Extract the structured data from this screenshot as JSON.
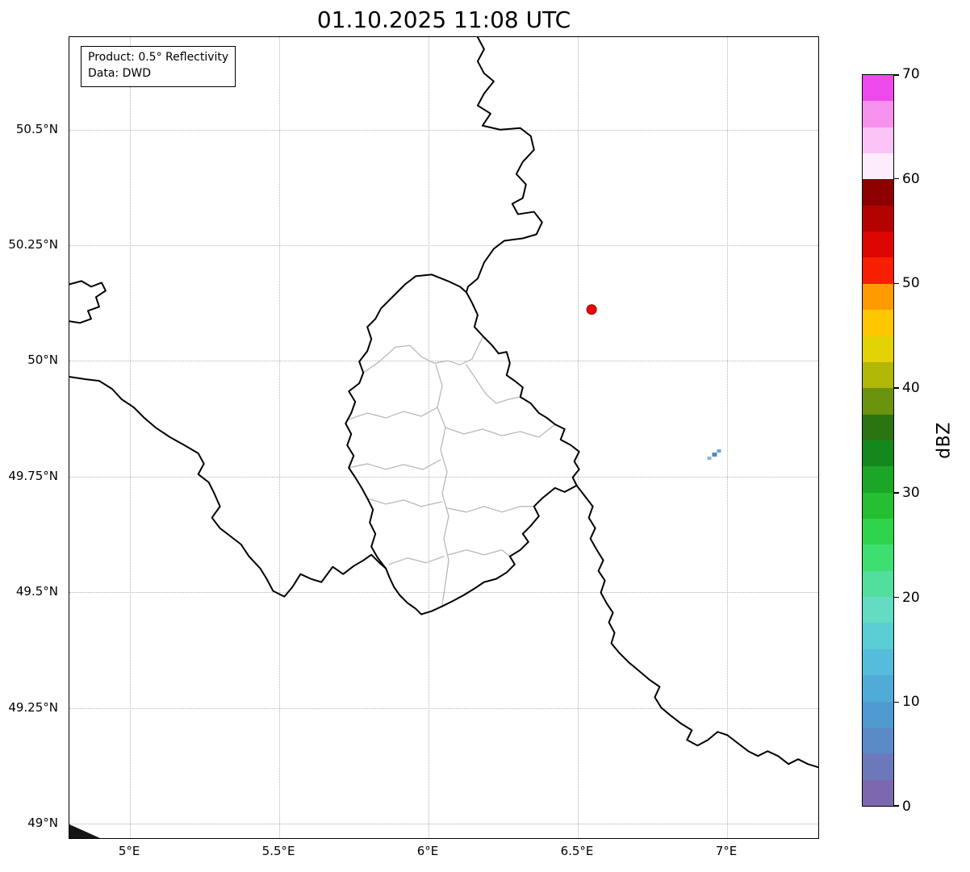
{
  "title": "01.10.2025 11:08 UTC",
  "info_box": {
    "line1": "Product: 0.5° Reflectivity",
    "line2": "Data: DWD"
  },
  "map": {
    "extent": {
      "lon_min": 4.797,
      "lon_max": 7.311,
      "lat_min": 48.965,
      "lat_max": 50.7
    },
    "x_ticks": [
      {
        "label": "5°E",
        "lon": 5.0
      },
      {
        "label": "5.5°E",
        "lon": 5.5
      },
      {
        "label": "6°E",
        "lon": 6.0
      },
      {
        "label": "6.5°E",
        "lon": 6.5
      },
      {
        "label": "7°E",
        "lon": 7.0
      }
    ],
    "y_ticks": [
      {
        "label": "50.5°N",
        "lat": 50.5
      },
      {
        "label": "50.25°N",
        "lat": 50.25
      },
      {
        "label": "50°N",
        "lat": 50.0
      },
      {
        "label": "49.75°N",
        "lat": 49.75
      },
      {
        "label": "49.5°N",
        "lat": 49.5
      },
      {
        "label": "49.25°N",
        "lat": 49.25
      },
      {
        "label": "49°N",
        "lat": 49.0
      }
    ],
    "radar_site_marker": {
      "lon": 6.55,
      "lat": 50.11,
      "fill": "#f40000",
      "edge": "#7e0000"
    },
    "radar_echo": {
      "lon": 6.96,
      "lat": 49.8,
      "colors": [
        "#86b6dd",
        "#4d86c4",
        "#6aa3d6"
      ]
    }
  },
  "colorbar": {
    "label": "dBZ",
    "min": 0,
    "max": 70,
    "ticks": [
      {
        "label": "0",
        "value": 0
      },
      {
        "label": "10",
        "value": 10
      },
      {
        "label": "20",
        "value": 20
      },
      {
        "label": "30",
        "value": 30
      },
      {
        "label": "40",
        "value": 40
      },
      {
        "label": "50",
        "value": 50
      },
      {
        "label": "60",
        "value": 60
      },
      {
        "label": "70",
        "value": 70
      }
    ],
    "segment_step_dbz": 2.5,
    "colors_bottom_to_top": [
      "#7b68ae",
      "#6b79bb",
      "#5a8ac7",
      "#4f9bd1",
      "#51abd9",
      "#55bcdb",
      "#5bcdd4",
      "#63dcc3",
      "#52df9d",
      "#3edf70",
      "#2fd44b",
      "#25bf31",
      "#1ca627",
      "#13881c",
      "#2a7512",
      "#6b930d",
      "#b2b708",
      "#e3d205",
      "#ffc702",
      "#ff9a00",
      "#f81e00",
      "#dc0500",
      "#b40200",
      "#8c0000",
      "#fdecfc",
      "#fbc3f6",
      "#f791ee",
      "#ee49ec"
    ]
  }
}
